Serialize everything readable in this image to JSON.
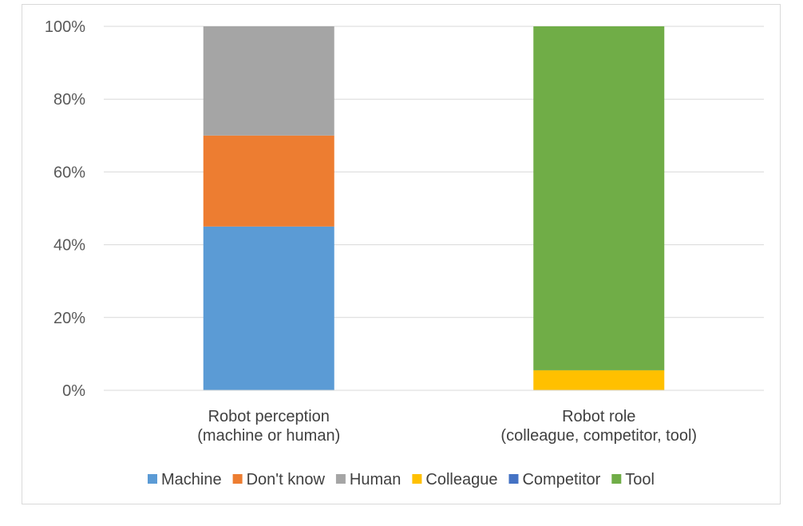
{
  "chart_data": {
    "type": "bar",
    "stacked": true,
    "categories": [
      [
        "Robot perception",
        "(machine or human)"
      ],
      [
        "Robot role",
        "(colleague, competitor, tool)"
      ]
    ],
    "yticks": [
      "0%",
      "20%",
      "40%",
      "60%",
      "80%",
      "100%"
    ],
    "ylim": [
      0,
      100
    ],
    "grid": true,
    "legend_position": "bottom",
    "series": [
      {
        "name": "Machine",
        "color": "#5b9bd5",
        "values": [
          45,
          0
        ]
      },
      {
        "name": "Don't know",
        "color": "#ed7d31",
        "values": [
          25,
          0
        ]
      },
      {
        "name": "Human",
        "color": "#a5a5a5",
        "values": [
          30,
          0
        ]
      },
      {
        "name": "Colleague",
        "color": "#ffc000",
        "values": [
          0,
          5.5
        ]
      },
      {
        "name": "Competitor",
        "color": "#4472c4",
        "values": [
          0,
          0
        ]
      },
      {
        "name": "Tool",
        "color": "#70ad47",
        "values": [
          0,
          94.5
        ]
      }
    ]
  }
}
